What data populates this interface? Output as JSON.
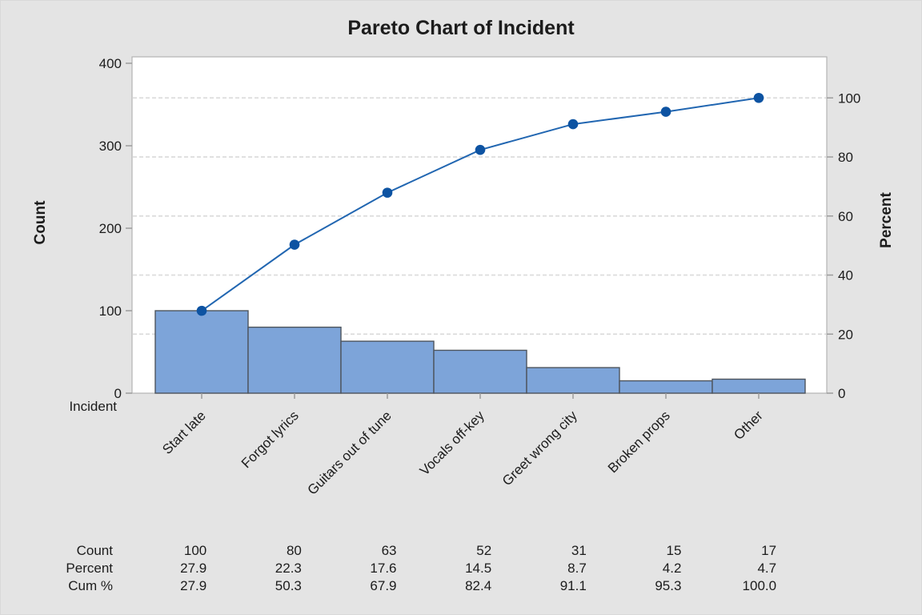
{
  "window": {
    "background": "#e4e4e4"
  },
  "chart_data": {
    "type": "pareto (bar + cumulative percent line)",
    "title": "Pareto Chart of Incident",
    "xlabel": "Incident",
    "ylabel_left": "Count",
    "ylabel_right": "Percent",
    "categories": [
      "Start late",
      "Forgot lyrics",
      "Guitars out of tune",
      "Vocals off-key",
      "Greet wrong city",
      "Broken props",
      "Other"
    ],
    "series": [
      {
        "name": "Count",
        "type": "bar",
        "axis": "left",
        "values": [
          100,
          80,
          63,
          52,
          31,
          15,
          17
        ]
      },
      {
        "name": "Cum %",
        "type": "line",
        "axis": "right",
        "values": [
          27.9,
          50.3,
          67.9,
          82.4,
          91.1,
          95.3,
          100.0
        ]
      }
    ],
    "percents": [
      27.9,
      22.3,
      17.6,
      14.5,
      8.7,
      4.2,
      4.7
    ],
    "total_count": 358,
    "ylim_left": [
      0,
      400
    ],
    "yticks_left": [
      0,
      100,
      200,
      300,
      400
    ],
    "yticks_right": [
      0,
      20,
      40,
      60,
      80,
      100
    ],
    "grid": {
      "style": "horizontal dashed lines at right-axis (percent) ticks"
    },
    "legend": "none",
    "stats_table": {
      "row_labels": [
        "Count",
        "Percent",
        "Cum %"
      ],
      "rows": [
        [
          "100",
          "80",
          "63",
          "52",
          "31",
          "15",
          "17"
        ],
        [
          "27.9",
          "22.3",
          "17.6",
          "14.5",
          "8.7",
          "4.2",
          "4.7"
        ],
        [
          "27.9",
          "50.3",
          "67.9",
          "82.4",
          "91.1",
          "95.3",
          "100.0"
        ]
      ]
    },
    "colors": {
      "background": "#e4e4e4",
      "plot_background": "#ffffff",
      "bar_fill": "#7da4d9",
      "bar_border": "#4e555e",
      "line": "#2166b1",
      "marker": "#0d53a2",
      "grid": "#dcdcdc",
      "frame": "#b3b3b3",
      "tick": "#9c9c9c",
      "text": "#1c1c1c"
    }
  }
}
